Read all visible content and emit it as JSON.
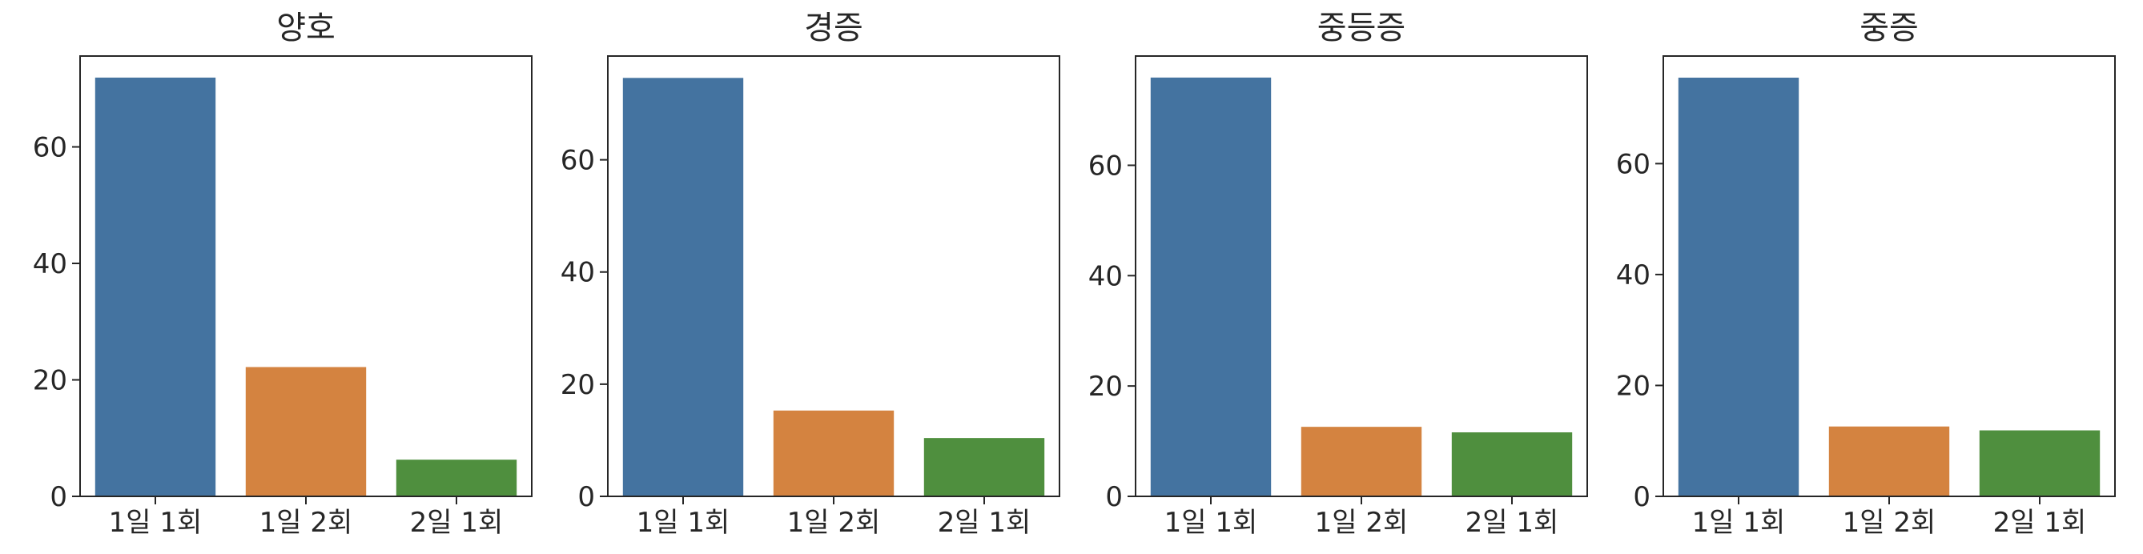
{
  "chart_data": [
    {
      "type": "bar",
      "title": "양호",
      "categories": [
        "1일 1회",
        "1일 2회",
        "2일 1회"
      ],
      "values": [
        71.9,
        22.2,
        6.3
      ],
      "ylim": [
        0,
        75.6
      ],
      "yticks": [
        0,
        20,
        40,
        60
      ],
      "colors": [
        "#4473a0",
        "#d48340",
        "#4f8f3e"
      ],
      "grid": false
    },
    {
      "type": "bar",
      "title": "경증",
      "categories": [
        "1일 1회",
        "1일 2회",
        "2일 1회"
      ],
      "values": [
        74.6,
        15.3,
        10.4
      ],
      "ylim": [
        0,
        78.5
      ],
      "yticks": [
        0,
        20,
        40,
        60
      ],
      "colors": [
        "#4473a0",
        "#d48340",
        "#4f8f3e"
      ],
      "grid": false
    },
    {
      "type": "bar",
      "title": "중등증",
      "categories": [
        "1일 1회",
        "1일 2회",
        "2일 1회"
      ],
      "values": [
        75.9,
        12.6,
        11.6
      ],
      "ylim": [
        0,
        79.8
      ],
      "yticks": [
        0,
        20,
        40,
        60
      ],
      "colors": [
        "#4473a0",
        "#d48340",
        "#4f8f3e"
      ],
      "grid": false
    },
    {
      "type": "bar",
      "title": "중증",
      "categories": [
        "1일 1회",
        "1일 2회",
        "2일 1회"
      ],
      "values": [
        75.5,
        12.6,
        11.9
      ],
      "ylim": [
        0,
        79.4
      ],
      "yticks": [
        0,
        20,
        40,
        60
      ],
      "colors": [
        "#4473a0",
        "#d48340",
        "#4f8f3e"
      ],
      "grid": false
    }
  ]
}
